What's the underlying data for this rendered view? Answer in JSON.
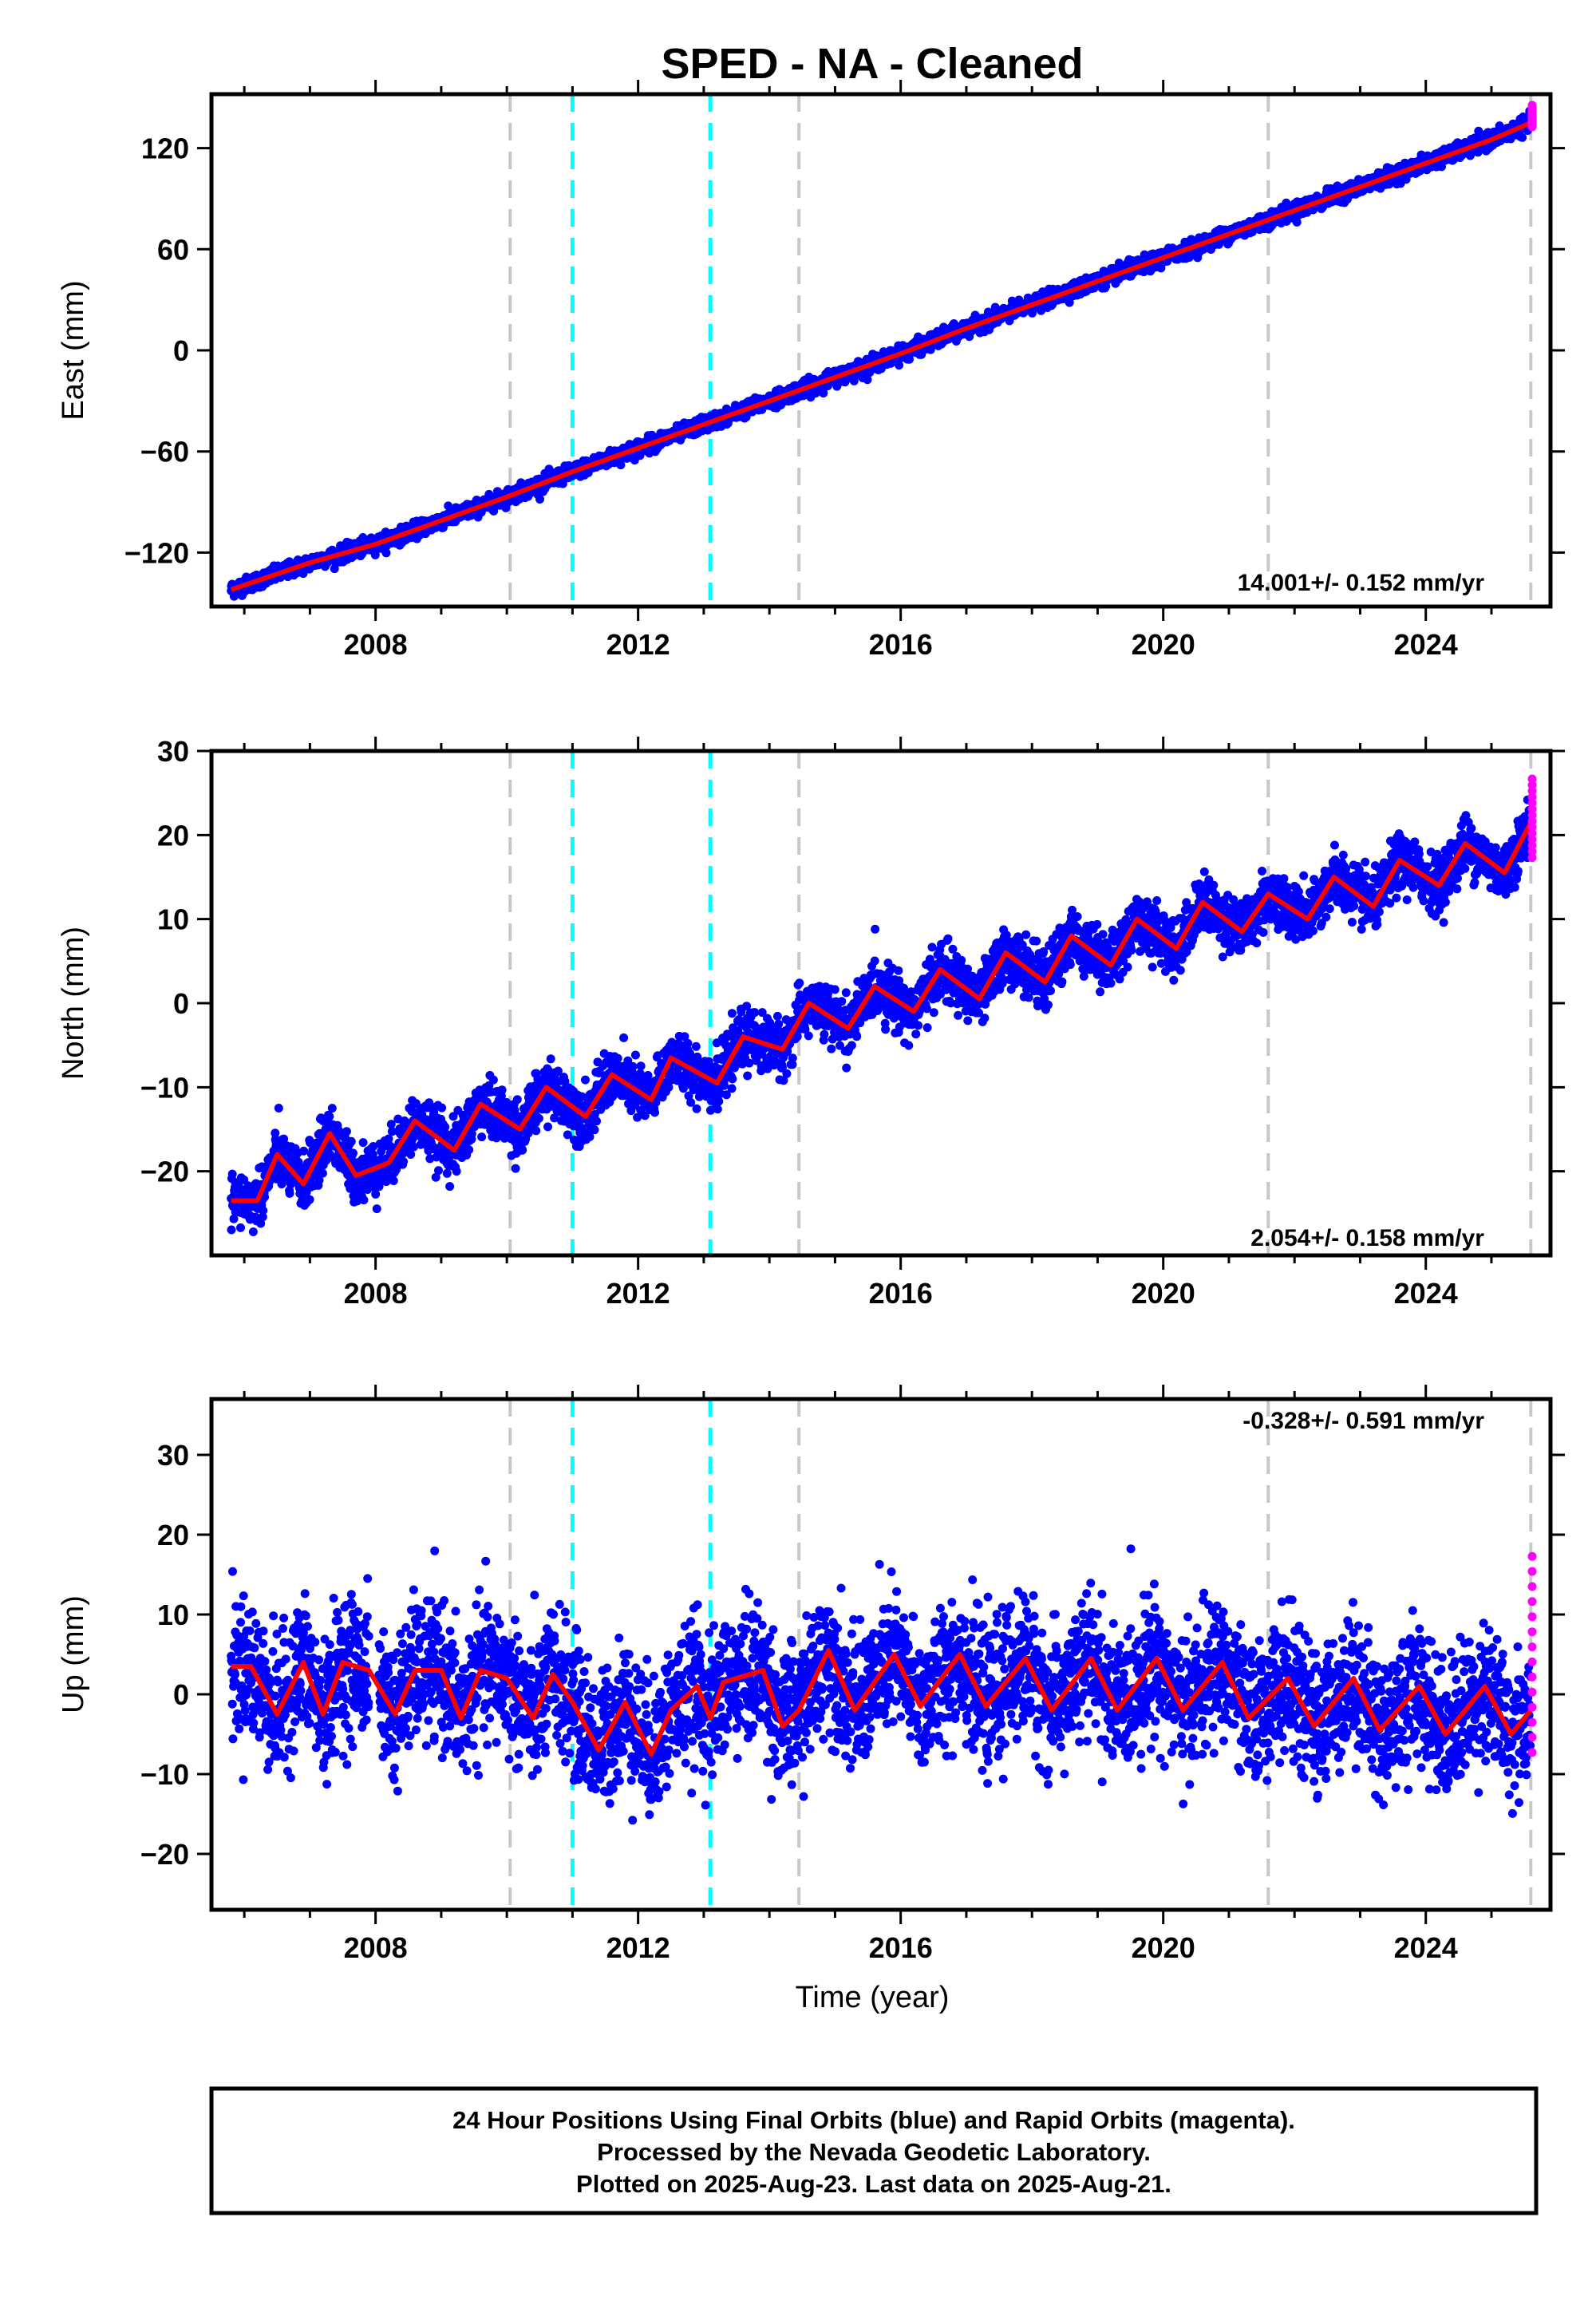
{
  "title": "SPED  - NA - Cleaned",
  "xlabel": "Time (year)",
  "colors": {
    "final": "#0000ff",
    "rapid": "#ff00ff",
    "model": "#ff0000",
    "equipment_change": "#c8c8c8",
    "earthquake": "#00ffff"
  },
  "footer": {
    "line1": "24 Hour Positions Using Final Orbits (blue) and Rapid Orbits (magenta).",
    "line2": "Processed by the Nevada Geodetic Laboratory.",
    "line3": "Plotted on 2025-Aug-23. Last data on 2025-Aug-21."
  },
  "chart_data": [
    {
      "type": "scatter",
      "component": "east",
      "ylabel": "East (mm)",
      "rate_label": "14.001+/- 0.152 mm/yr",
      "rate_mm_per_yr": 14.001,
      "xlim": [
        2005.5,
        2025.9
      ],
      "ylim": [
        -152,
        152
      ],
      "yticks": [
        -120,
        -60,
        0,
        60,
        120
      ],
      "ytick_labels": [
        "−120",
        "−60",
        "0",
        "60",
        "120"
      ],
      "xticks": [
        2008,
        2012,
        2016,
        2020,
        2024
      ],
      "xtick_labels": [
        "2008",
        "2012",
        "2016",
        "2020",
        "2024"
      ],
      "series": [
        {
          "role": "model",
          "x": [
            2005.8,
            2007,
            2008,
            2009,
            2010,
            2011,
            2012,
            2013,
            2014,
            2015,
            2016,
            2017,
            2018,
            2019,
            2020,
            2021,
            2022,
            2023,
            2024,
            2025,
            2025.6
          ],
          "values": [
            -142,
            -126,
            -115,
            -101,
            -87,
            -72,
            -58,
            -44,
            -30,
            -16,
            -2,
            13,
            27,
            41,
            55,
            69,
            83,
            97,
            111,
            125,
            135
          ]
        },
        {
          "role": "rapid",
          "x": [
            2025.6
          ],
          "values": [
            139
          ]
        }
      ],
      "equipment_changes": [
        2010.05,
        2014.45,
        2021.6,
        2025.6
      ],
      "earthquakes": [
        2011.0,
        2013.1
      ]
    },
    {
      "type": "scatter",
      "component": "north",
      "ylabel": "North (mm)",
      "rate_label": "2.054+/- 0.158 mm/yr",
      "rate_mm_per_yr": 2.054,
      "xlim": [
        2005.5,
        2025.9
      ],
      "ylim": [
        -30,
        30
      ],
      "yticks": [
        -20,
        -10,
        0,
        10,
        20,
        30
      ],
      "ytick_labels": [
        "−20",
        "−10",
        "0",
        "10",
        "20",
        "30"
      ],
      "xticks": [
        2008,
        2012,
        2016,
        2020,
        2024
      ],
      "xtick_labels": [
        "2008",
        "2012",
        "2016",
        "2020",
        "2024"
      ],
      "series": [
        {
          "role": "model",
          "x": [
            2005.8,
            2006.2,
            2006.5,
            2006.9,
            2007.3,
            2007.7,
            2008.2,
            2008.6,
            2009.2,
            2009.6,
            2010.2,
            2010.6,
            2011.2,
            2011.6,
            2012.2,
            2012.5,
            2013.2,
            2013.6,
            2014.2,
            2014.6,
            2015.2,
            2015.6,
            2016.2,
            2016.6,
            2017.2,
            2017.6,
            2018.2,
            2018.6,
            2019.2,
            2019.6,
            2020.2,
            2020.6,
            2021.2,
            2021.6,
            2022.2,
            2022.6,
            2023.2,
            2023.6,
            2024.2,
            2024.6,
            2025.2,
            2025.6
          ],
          "values": [
            -23.5,
            -23.5,
            -18,
            -21.5,
            -15.5,
            -20.5,
            -19,
            -14,
            -17.5,
            -12,
            -15,
            -10,
            -13.5,
            -8.5,
            -11.5,
            -6.5,
            -9.5,
            -4,
            -5.5,
            0,
            -3,
            2,
            -1,
            4,
            0.5,
            6,
            2.5,
            8,
            4.5,
            10,
            6.5,
            12,
            8.5,
            13,
            10,
            15,
            11.5,
            17,
            14,
            19,
            15.5,
            21.5
          ]
        },
        {
          "role": "rapid",
          "x": [
            2025.6
          ],
          "values": [
            22
          ]
        }
      ],
      "equipment_changes": [
        2010.05,
        2014.45,
        2021.6,
        2025.6
      ],
      "earthquakes": [
        2011.0,
        2013.1
      ]
    },
    {
      "type": "scatter",
      "component": "up",
      "ylabel": "Up (mm)",
      "rate_label": "-0.328+/- 0.591 mm/yr",
      "rate_mm_per_yr": -0.328,
      "xlim": [
        2005.5,
        2025.9
      ],
      "ylim": [
        -27,
        37
      ],
      "yticks": [
        -20,
        -10,
        0,
        10,
        20,
        30
      ],
      "ytick_labels": [
        "−20",
        "−10",
        "0",
        "10",
        "20",
        "30"
      ],
      "xticks": [
        2008,
        2012,
        2016,
        2020,
        2024
      ],
      "xtick_labels": [
        "2008",
        "2012",
        "2016",
        "2020",
        "2024"
      ],
      "series": [
        {
          "role": "model",
          "x": [
            2005.8,
            2006.1,
            2006.5,
            2006.9,
            2007.2,
            2007.5,
            2007.9,
            2008.3,
            2008.6,
            2009.0,
            2009.3,
            2009.6,
            2010.0,
            2010.4,
            2010.7,
            2011.0,
            2011.4,
            2011.8,
            2012.2,
            2012.5,
            2012.9,
            2013.1,
            2013.3,
            2013.9,
            2014.2,
            2014.45,
            2014.9,
            2015.3,
            2015.9,
            2016.3,
            2016.9,
            2017.3,
            2017.9,
            2018.3,
            2018.9,
            2019.3,
            2019.9,
            2020.3,
            2020.9,
            2021.3,
            2021.9,
            2022.3,
            2022.9,
            2023.3,
            2023.9,
            2024.3,
            2024.9,
            2025.3,
            2025.6
          ],
          "values": [
            3.5,
            3.5,
            -2.5,
            4,
            -2.5,
            4,
            3,
            -2.5,
            3,
            3,
            -3,
            3,
            2,
            -3,
            2.5,
            -1,
            -7,
            -1,
            -7.5,
            -2,
            1,
            -3,
            1.5,
            3,
            -4,
            -2,
            5.5,
            -2,
            5,
            -1.5,
            5,
            -1.5,
            4.5,
            -2,
            4.5,
            -2,
            4.5,
            -2,
            4,
            -3,
            2,
            -4,
            2,
            -4.5,
            1,
            -5,
            1,
            -5,
            -2
          ]
        },
        {
          "role": "rapid",
          "x": [
            2025.6
          ],
          "values": [
            5
          ]
        }
      ],
      "equipment_changes": [
        2010.05,
        2014.45,
        2021.6,
        2025.6
      ],
      "earthquakes": [
        2011.0,
        2013.1
      ]
    }
  ]
}
